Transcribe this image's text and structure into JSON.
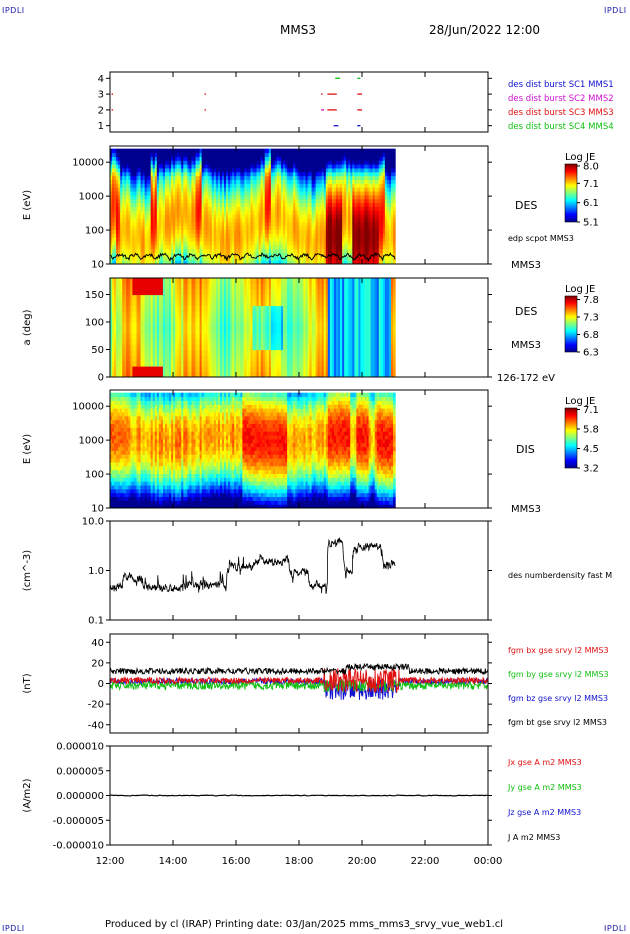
{
  "corners": {
    "tl": "IPDLI",
    "tr": "IPDLI",
    "bl": "IPDLI",
    "br": "IPDLI"
  },
  "header": {
    "spacecraft": "MMS3",
    "datetime": "28/Jun/2022 12:00"
  },
  "footer": {
    "text": "Produced by cl (IRAP)   Printing date: 03/Jan/2025   mms_mms3_srvy_vue_web1.cl"
  },
  "colors": {
    "blue": "#1010d0",
    "magenta": "#d010d0",
    "red": "#e01010",
    "green": "#10c010",
    "black": "#000000"
  },
  "time_axis": {
    "ticks": [
      "12:00",
      "14:00",
      "16:00",
      "18:00",
      "20:00",
      "22:00",
      "00:00"
    ],
    "start_hour": 12,
    "end_hour": 24,
    "data_end_hour": 21.05
  },
  "chart_data": [
    {
      "type": "scatter",
      "panel": "burst-availability",
      "yticks": [
        "1",
        "2",
        "3",
        "4"
      ],
      "ylim": [
        0.6,
        4.4
      ],
      "legend": [
        {
          "label": "des dist burst SC1 MMS1",
          "color": "blue"
        },
        {
          "label": "des dist burst SC2 MMS2",
          "color": "magenta"
        },
        {
          "label": "des dist burst SC3 MMS3",
          "color": "red"
        },
        {
          "label": "des dist burst SC4 MMS4",
          "color": "green"
        }
      ],
      "segments": [
        {
          "sc": 3,
          "t0": 12.05,
          "t1": 12.08,
          "color": "red"
        },
        {
          "sc": 3,
          "t0": 15.0,
          "t1": 15.03,
          "color": "red"
        },
        {
          "sc": 2,
          "t0": 12.05,
          "t1": 12.08,
          "color": "red"
        },
        {
          "sc": 2,
          "t0": 15.0,
          "t1": 15.03,
          "color": "red"
        },
        {
          "sc": 4,
          "t0": 19.15,
          "t1": 19.3,
          "color": "green"
        },
        {
          "sc": 4,
          "t0": 19.85,
          "t1": 19.95,
          "color": "green"
        },
        {
          "sc": 3,
          "t0": 18.7,
          "t1": 18.75,
          "color": "red"
        },
        {
          "sc": 3,
          "t0": 18.9,
          "t1": 19.2,
          "color": "red"
        },
        {
          "sc": 3,
          "t0": 19.85,
          "t1": 20.0,
          "color": "red"
        },
        {
          "sc": 2,
          "t0": 18.7,
          "t1": 18.8,
          "color": "magenta"
        },
        {
          "sc": 2,
          "t0": 18.9,
          "t1": 19.2,
          "color": "red"
        },
        {
          "sc": 2,
          "t0": 19.85,
          "t1": 20.0,
          "color": "red"
        },
        {
          "sc": 1,
          "t0": 19.1,
          "t1": 19.25,
          "color": "blue"
        },
        {
          "sc": 1,
          "t0": 19.85,
          "t1": 19.95,
          "color": "blue"
        }
      ]
    },
    {
      "type": "heatmap",
      "panel": "des-energy",
      "ylabel": "E (eV)",
      "yscale": "log",
      "ylim": [
        10,
        30000
      ],
      "yticks": [
        "10",
        "100",
        "1000",
        "10000"
      ],
      "label": "DES",
      "sublabel": "MMS3",
      "overlay_label": "edp scpot MMS3",
      "colorbar": {
        "title": "Log JE",
        "min": 5.1,
        "max": 8.1,
        "ticks": [
          "8.0",
          "7.1",
          "6.1",
          "5.1"
        ]
      }
    },
    {
      "type": "heatmap",
      "panel": "des-pitch-angle",
      "ylabel": "a (deg)",
      "ylim": [
        0,
        180
      ],
      "yticks": [
        "0",
        "50",
        "100",
        "150"
      ],
      "label": "DES",
      "sublabel": "MMS3",
      "range_label": "126-172 eV",
      "colorbar": {
        "title": "Log JE",
        "min": 6.3,
        "max": 7.9,
        "ticks": [
          "7.8",
          "7.3",
          "6.8",
          "6.3"
        ]
      }
    },
    {
      "type": "heatmap",
      "panel": "dis-energy",
      "ylabel": "E (eV)",
      "yscale": "log",
      "ylim": [
        10,
        30000
      ],
      "yticks": [
        "10",
        "100",
        "1000",
        "10000"
      ],
      "label": "DIS",
      "sublabel": "MMS3",
      "colorbar": {
        "title": "Log JE",
        "min": 3.2,
        "max": 7.2,
        "ticks": [
          "7.1",
          "5.8",
          "4.5",
          "3.2"
        ]
      }
    },
    {
      "type": "line",
      "panel": "density",
      "ylabel": "(cm^-3)",
      "yscale": "log",
      "ylim": [
        0.1,
        10
      ],
      "yticks": [
        "0.1",
        "1.0",
        "10.0"
      ],
      "legend": [
        {
          "label": "des numberdensity fast M",
          "color": "black"
        }
      ]
    },
    {
      "type": "line",
      "panel": "magnetic-field",
      "ylabel": "(nT)",
      "ylim": [
        -48,
        48
      ],
      "yticks": [
        "-40",
        "-20",
        "0",
        "20",
        "40"
      ],
      "legend": [
        {
          "label": "fgm bx gse srvy l2 MMS3",
          "color": "red"
        },
        {
          "label": "fgm by gse srvy l2 MMS3",
          "color": "green"
        },
        {
          "label": "fgm bz gse srvy l2 MMS3",
          "color": "blue"
        },
        {
          "label": "fgm bt gse srvy l2 MMS3",
          "color": "black"
        }
      ]
    },
    {
      "type": "line",
      "panel": "current-density",
      "ylabel": "(A/m2)",
      "ylim": [
        -1e-05,
        1e-05
      ],
      "yticks": [
        "-0.000010",
        "-0.000005",
        "0.000000",
        "0.000005",
        "0.000010"
      ],
      "legend": [
        {
          "label": "Jx gse A m2 MMS3",
          "color": "red"
        },
        {
          "label": "Jy gse A m2 MMS3",
          "color": "green"
        },
        {
          "label": "Jz gse A m2 MMS3",
          "color": "blue"
        },
        {
          "label": "J A m2 MMS3",
          "color": "black"
        }
      ]
    }
  ]
}
